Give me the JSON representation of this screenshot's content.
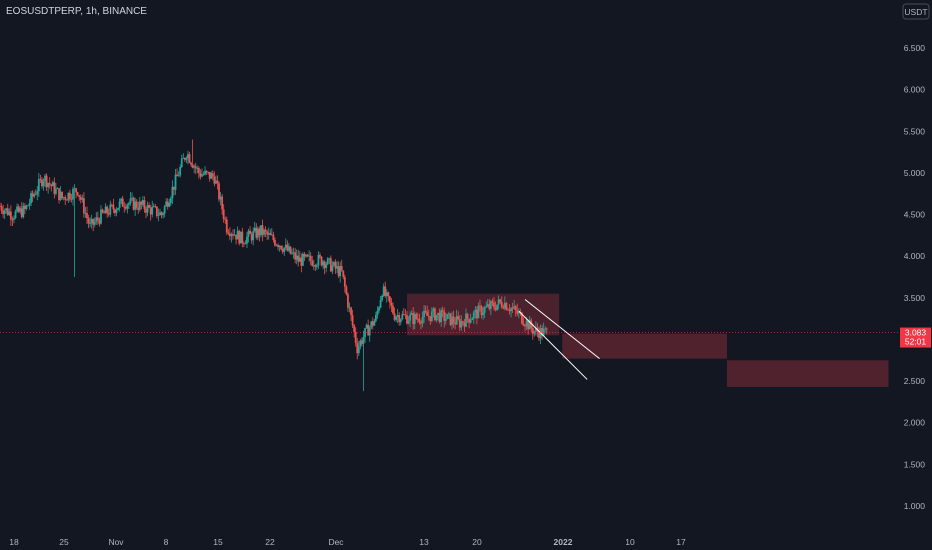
{
  "header": {
    "symbol_label": "EOSUSDTPERP, 1h, BINANCE",
    "currency_badge": "USDT"
  },
  "price_tag": {
    "price": "3.083",
    "countdown": "52:01",
    "color": "#f23645"
  },
  "colors": {
    "background": "#131722",
    "up_candle": "#26a69a",
    "down_candle": "#ef5350",
    "zone_fill": "#7a2a36",
    "trend_line": "#ffffff",
    "axis_text": "#b2b5be"
  },
  "chart_data": {
    "type": "candlestick",
    "title": "EOSUSDTPERP, 1h, BINANCE",
    "ylabel": "USDT",
    "ylim": [
      0.55,
      6.9
    ],
    "y_ticks": [
      "6.500",
      "6.000",
      "5.500",
      "5.000",
      "4.500",
      "4.000",
      "3.500",
      "3.000",
      "2.500",
      "2.000",
      "1.500",
      "1.000"
    ],
    "x_ticks": [
      "18",
      "25",
      "Nov",
      "8",
      "15",
      "22",
      "Dec",
      "13",
      "20",
      "2022",
      "10",
      "17"
    ],
    "current_price": 3.083,
    "series": [
      {
        "name": "price",
        "approx_path": [
          {
            "t": 0,
            "v": 4.6
          },
          {
            "t": 4,
            "v": 4.5
          },
          {
            "t": 8,
            "v": 4.55
          },
          {
            "t": 14,
            "v": 4.95
          },
          {
            "t": 20,
            "v": 4.7
          },
          {
            "t": 25,
            "v": 4.8
          },
          {
            "t": 29,
            "v": 4.35
          },
          {
            "t": 33,
            "v": 4.5
          },
          {
            "t": 40,
            "v": 4.65
          },
          {
            "t": 46,
            "v": 4.6
          },
          {
            "t": 52,
            "v": 4.5
          },
          {
            "t": 56,
            "v": 4.85
          },
          {
            "t": 60,
            "v": 5.25
          },
          {
            "t": 64,
            "v": 5.0
          },
          {
            "t": 69,
            "v": 4.95
          },
          {
            "t": 73,
            "v": 4.35
          },
          {
            "t": 78,
            "v": 4.2
          },
          {
            "t": 84,
            "v": 4.3
          },
          {
            "t": 90,
            "v": 4.15
          },
          {
            "t": 96,
            "v": 3.95
          },
          {
            "t": 104,
            "v": 3.95
          },
          {
            "t": 110,
            "v": 3.8
          },
          {
            "t": 115,
            "v": 2.9
          },
          {
            "t": 118,
            "v": 3.1
          },
          {
            "t": 121,
            "v": 3.25
          },
          {
            "t": 123,
            "v": 3.6
          },
          {
            "t": 127,
            "v": 3.3
          },
          {
            "t": 133,
            "v": 3.25
          },
          {
            "t": 140,
            "v": 3.3
          },
          {
            "t": 148,
            "v": 3.2
          },
          {
            "t": 155,
            "v": 3.35
          },
          {
            "t": 162,
            "v": 3.45
          },
          {
            "t": 167,
            "v": 3.3
          },
          {
            "t": 172,
            "v": 3.1
          },
          {
            "t": 176,
            "v": 3.08
          }
        ],
        "spikes": [
          {
            "t": 24,
            "low": 3.75
          },
          {
            "t": 62,
            "high": 5.4
          },
          {
            "t": 117,
            "low": 2.38
          }
        ]
      }
    ],
    "zones": [
      {
        "label": "range",
        "x_start": 131,
        "x_end": 180,
        "y_low": 3.05,
        "y_high": 3.55
      },
      {
        "label": "target-1",
        "x_start": 181,
        "x_end": 234,
        "y_low": 2.77,
        "y_high": 3.07
      },
      {
        "label": "target-2",
        "x_start": 234,
        "x_end": 286,
        "y_low": 2.43,
        "y_high": 2.75
      }
    ],
    "channel_lines": [
      {
        "x1": 169,
        "y1": 3.48,
        "x2": 193,
        "y2": 2.77
      },
      {
        "x1": 167,
        "y1": 3.34,
        "x2": 189,
        "y2": 2.52
      }
    ],
    "grid": false
  }
}
